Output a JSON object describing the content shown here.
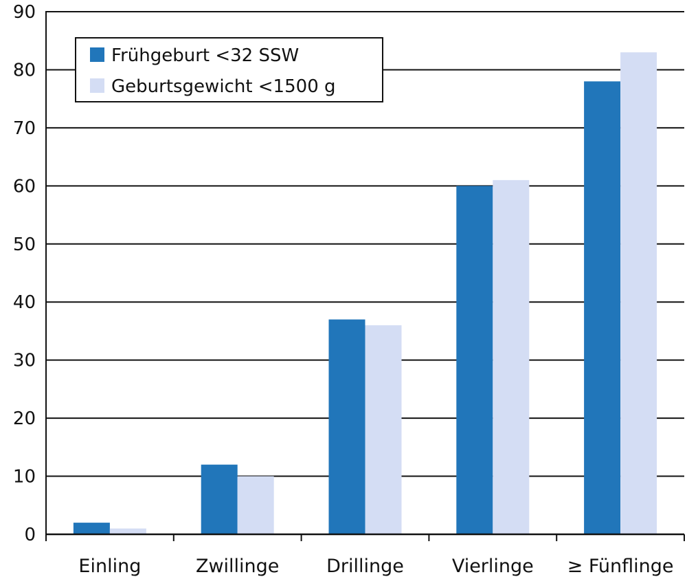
{
  "chart_data": {
    "type": "bar",
    "categories": [
      "Einling",
      "Zwillinge",
      "Drillinge",
      "Vierlinge",
      "≥ Fünflinge"
    ],
    "series": [
      {
        "name": "Frühgeburt <32 SSW",
        "values": [
          2,
          12,
          37,
          60,
          78
        ],
        "color": "#2176BA"
      },
      {
        "name": "Geburtsgewicht <1500 g",
        "values": [
          1,
          10,
          36,
          61,
          83
        ],
        "color": "#D4DDF4"
      }
    ],
    "ylim": [
      0,
      90
    ],
    "yticks": [
      "0",
      "10",
      "20",
      "30",
      "40",
      "50",
      "60",
      "70",
      "80",
      "90"
    ],
    "grid": true,
    "legend_position": "top-left"
  }
}
